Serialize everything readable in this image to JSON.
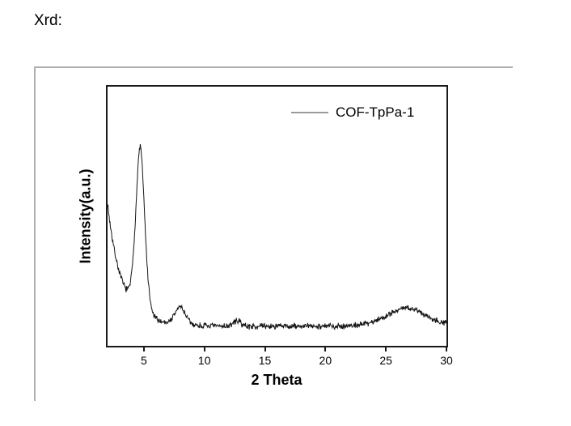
{
  "page": {
    "heading": "Xrd:"
  },
  "colors": {
    "background": "#ffffff",
    "curve": "#141414",
    "legend_line": "#9a9a9a",
    "panel_border": "#b0b0b0",
    "plot_frame": "#1a1a1a",
    "text": "#000000"
  },
  "chart_data": {
    "type": "line",
    "title": "",
    "xlabel": "2 Theta",
    "ylabel": "Intensity(a.u.)",
    "xlim": [
      2,
      30
    ],
    "x_ticks": [
      5,
      10,
      15,
      20,
      25,
      30
    ],
    "y_ticks": [],
    "grid": false,
    "legend": {
      "position": "top-right",
      "entries": [
        {
          "label": "COF-TpPa-1"
        }
      ]
    },
    "series": [
      {
        "name": "COF-TpPa-1",
        "description": "Noisy powder XRD trace: steep low-angle rise at left edge, intense peak at ~4.7 deg, weak peak at ~8.0 deg, very weak bump at ~12.7 deg, broad hump at ~26.7 deg, flat noisy baseline elsewhere",
        "model": {
          "baseline": 0.017,
          "noise_amplitude": 0.02,
          "noise_seed": 7,
          "points_per_unit": 30,
          "low_angle_tail": {
            "amplitude": 0.66,
            "decay_per_unit": 1.15
          },
          "peaks": [
            {
              "center": 4.7,
              "height": 0.91,
              "sigma": 0.38
            },
            {
              "center": 8.0,
              "height": 0.1,
              "sigma": 0.45
            },
            {
              "center": 12.7,
              "height": 0.03,
              "sigma": 0.3
            },
            {
              "center": 26.7,
              "height": 0.1,
              "sigma": 1.7
            }
          ]
        }
      }
    ]
  }
}
